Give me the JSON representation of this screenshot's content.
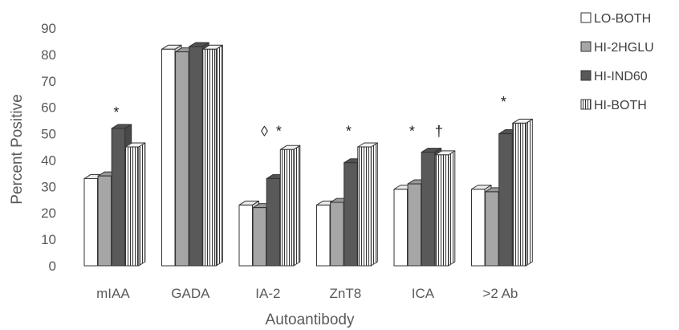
{
  "chart_data": {
    "type": "bar",
    "title": "",
    "xlabel": "Autoantibody",
    "ylabel": "Percent Positive",
    "ylim": [
      0,
      90
    ],
    "yticks": [
      0,
      10,
      20,
      30,
      40,
      50,
      60,
      70,
      80,
      90
    ],
    "grid": false,
    "legend_position": "right",
    "categories": [
      "mIAA",
      "GADA",
      "IA-2",
      "ZnT8",
      "ICA",
      ">2 Ab"
    ],
    "series": [
      {
        "name": "LO-BOTH",
        "values": [
          33,
          82,
          23,
          23,
          29,
          29
        ],
        "fill": "#ffffff",
        "pattern": "solid"
      },
      {
        "name": "HI-2HGLU",
        "values": [
          34,
          81,
          22,
          24,
          31,
          28
        ],
        "fill": "#a6a6a6",
        "pattern": "solid"
      },
      {
        "name": "HI-IND60",
        "values": [
          52,
          83,
          33,
          39,
          43,
          50
        ],
        "fill": "#595959",
        "pattern": "solid"
      },
      {
        "name": "HI-BOTH",
        "values": [
          45,
          82,
          44,
          45,
          42,
          54
        ],
        "fill": "#ffffff",
        "pattern": "vertical-lines"
      }
    ],
    "annotations": [
      {
        "category": "mIAA",
        "text": "*",
        "y": 58
      },
      {
        "category": "IA-2",
        "text": "◊  *",
        "y": 51
      },
      {
        "category": "ZnT8",
        "text": "*",
        "y": 51
      },
      {
        "category": "ICA",
        "text": "*     †",
        "y": 51
      },
      {
        "category": ">2 Ab",
        "text": "*",
        "y": 62
      }
    ]
  }
}
